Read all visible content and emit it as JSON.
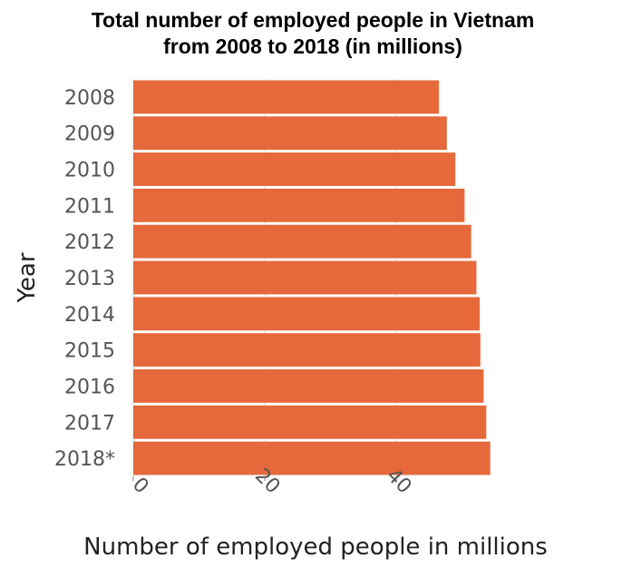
{
  "chart_data": {
    "type": "bar",
    "orientation": "horizontal",
    "title_lines": [
      "Total number of employed people in Vietnam",
      "from 2008 to 2018 (in millions)"
    ],
    "xlabel": "Number of employed people in millions",
    "ylabel": "Year",
    "categories": [
      "2008",
      "2009",
      "2010",
      "2011",
      "2012",
      "2013",
      "2014",
      "2015",
      "2016",
      "2017",
      "2018*"
    ],
    "values": [
      46.5,
      47.7,
      49.0,
      50.4,
      51.4,
      52.2,
      52.7,
      52.8,
      53.3,
      53.7,
      54.3
    ],
    "x_ticks": [
      "0",
      "20",
      "40"
    ],
    "x_tick_values": [
      0,
      20,
      40
    ],
    "xlim": [
      0,
      60
    ],
    "grid": true,
    "legend": "none",
    "colors": {
      "bar": "#e5693a",
      "background": "#ffffff",
      "grid": "#dddddd"
    }
  }
}
